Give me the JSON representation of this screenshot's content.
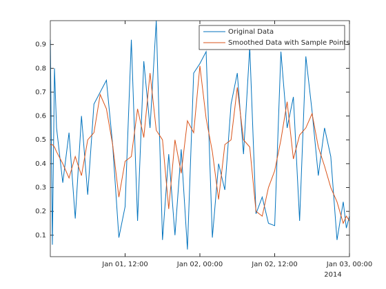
{
  "chart_data": {
    "type": "line",
    "x": [
      "2014-01-01 00:00",
      "2014-01-01 00:20",
      "2014-01-01 00:40",
      "2014-01-01 01:00",
      "2014-01-01 02:00",
      "2014-01-01 03:00",
      "2014-01-01 04:00",
      "2014-01-01 05:00",
      "2014-01-01 06:00",
      "2014-01-01 07:00",
      "2014-01-01 08:00",
      "2014-01-01 09:00",
      "2014-01-01 10:00",
      "2014-01-01 11:00",
      "2014-01-01 12:00",
      "2014-01-01 13:00",
      "2014-01-01 14:00",
      "2014-01-01 15:00",
      "2014-01-01 16:00",
      "2014-01-01 17:00",
      "2014-01-01 18:00",
      "2014-01-01 19:00",
      "2014-01-01 20:00",
      "2014-01-01 21:00",
      "2014-01-01 22:00",
      "2014-01-01 23:00",
      "2014-01-02 00:00",
      "2014-01-02 01:00",
      "2014-01-02 02:00",
      "2014-01-02 03:00",
      "2014-01-02 04:00",
      "2014-01-02 05:00",
      "2014-01-02 06:00",
      "2014-01-02 07:00",
      "2014-01-02 08:00",
      "2014-01-02 09:00",
      "2014-01-02 10:00",
      "2014-01-02 11:00",
      "2014-01-02 12:00",
      "2014-01-02 13:00",
      "2014-01-02 14:00",
      "2014-01-02 15:00",
      "2014-01-02 16:00",
      "2014-01-02 17:00",
      "2014-01-02 18:00",
      "2014-01-02 19:00",
      "2014-01-02 20:00",
      "2014-01-02 21:00",
      "2014-01-02 22:00",
      "2014-01-02 23:00",
      "2014-01-02 23:30",
      "2014-01-03 00:00"
    ],
    "series": [
      {
        "name": "Original Data",
        "color": "#0072bd",
        "values": [
          0.92,
          0.06,
          0.8,
          0.55,
          0.32,
          0.53,
          0.17,
          0.6,
          0.27,
          0.65,
          0.7,
          0.75,
          0.48,
          0.09,
          0.22,
          0.92,
          0.16,
          0.83,
          0.55,
          1.0,
          0.08,
          0.44,
          0.1,
          0.46,
          0.04,
          0.78,
          0.82,
          0.87,
          0.09,
          0.4,
          0.29,
          0.65,
          0.78,
          0.44,
          0.89,
          0.19,
          0.26,
          0.15,
          0.14,
          0.87,
          0.55,
          0.68,
          0.16,
          0.85,
          0.62,
          0.35,
          0.55,
          0.43,
          0.08,
          0.24,
          0.13,
          0.18
        ]
      },
      {
        "name": "Smoothed Data with Sample Points",
        "color": "#d95319",
        "values": [
          0.48,
          0.48,
          0.47,
          0.45,
          0.4,
          0.34,
          0.43,
          0.35,
          0.5,
          0.53,
          0.69,
          0.63,
          0.48,
          0.26,
          0.41,
          0.43,
          0.63,
          0.51,
          0.78,
          0.54,
          0.5,
          0.21,
          0.5,
          0.36,
          0.58,
          0.53,
          0.81,
          0.59,
          0.45,
          0.25,
          0.48,
          0.5,
          0.72,
          0.5,
          0.47,
          0.2,
          0.18,
          0.3,
          0.37,
          0.5,
          0.66,
          0.42,
          0.52,
          0.55,
          0.61,
          0.47,
          0.39,
          0.3,
          0.24,
          0.15,
          0.18,
          0.16
        ]
      }
    ],
    "xlim": [
      "2014-01-01 00:00",
      "2014-01-03 00:00"
    ],
    "xticks": [
      {
        "value": "2014-01-01 12:00",
        "label": "Jan 01, 12:00"
      },
      {
        "value": "2014-01-02 00:00",
        "label": "Jan 02, 00:00"
      },
      {
        "value": "2014-01-02 12:00",
        "label": "Jan 02, 12:00"
      },
      {
        "value": "2014-01-03 00:00",
        "label": "Jan 03, 00:00"
      }
    ],
    "x_year_label": "2014",
    "ylim": [
      0.01,
      1.0
    ],
    "yticks": [
      0.1,
      0.2,
      0.3,
      0.4,
      0.5,
      0.6,
      0.7,
      0.8,
      0.9
    ],
    "legend": "top-right"
  }
}
